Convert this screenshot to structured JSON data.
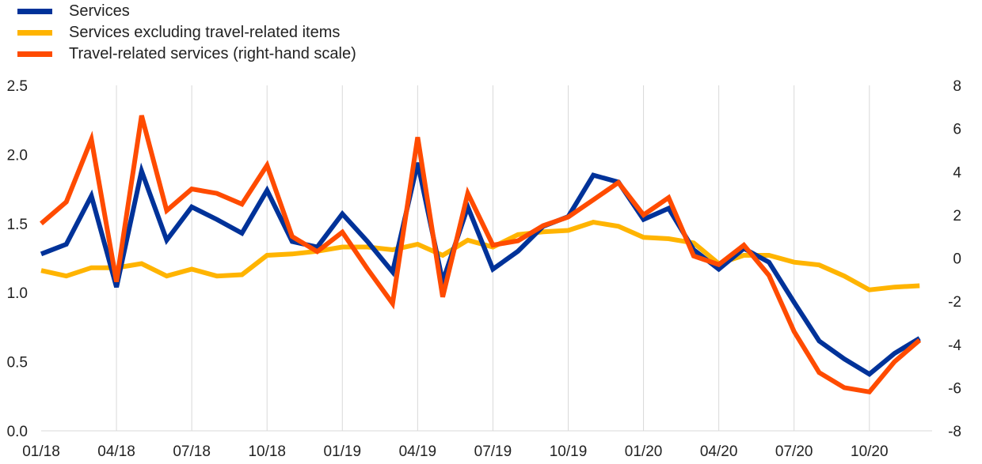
{
  "chart_data": {
    "type": "line",
    "title": "",
    "x": [
      "01/18",
      "02/18",
      "03/18",
      "04/18",
      "05/18",
      "06/18",
      "07/18",
      "08/18",
      "09/18",
      "10/18",
      "11/18",
      "12/18",
      "01/19",
      "02/19",
      "03/19",
      "04/19",
      "05/19",
      "06/19",
      "07/19",
      "08/19",
      "09/19",
      "10/19",
      "11/19",
      "12/19",
      "01/20",
      "02/20",
      "03/20",
      "04/20",
      "05/20",
      "06/20",
      "07/20",
      "08/20",
      "09/20",
      "10/20",
      "11/20",
      "12/20"
    ],
    "x_tick_labels": [
      "01/18",
      "04/18",
      "07/18",
      "10/18",
      "01/19",
      "04/19",
      "07/19",
      "10/19",
      "01/20",
      "04/20",
      "07/20",
      "10/20"
    ],
    "y_left": {
      "label": "",
      "ylim": [
        0.0,
        2.5
      ],
      "ticks": [
        "0.0",
        "0.5",
        "1.0",
        "1.5",
        "2.0",
        "2.5"
      ]
    },
    "y_right": {
      "label": "",
      "ylim": [
        -8,
        8
      ],
      "ticks": [
        "-8",
        "-6",
        "-4",
        "-2",
        "0",
        "2",
        "4",
        "6",
        "8"
      ]
    },
    "grid": "vertical",
    "legend_position": "top-left",
    "series": [
      {
        "name": "Services",
        "axis": "left",
        "color": "#003299",
        "values": [
          1.28,
          1.35,
          1.7,
          1.04,
          1.88,
          1.38,
          1.62,
          1.53,
          1.43,
          1.74,
          1.37,
          1.33,
          1.57,
          1.37,
          1.15,
          1.94,
          1.08,
          1.62,
          1.17,
          1.3,
          1.48,
          1.55,
          1.85,
          1.8,
          1.53,
          1.61,
          1.31,
          1.17,
          1.32,
          1.22,
          0.93,
          0.65,
          0.52,
          0.41,
          0.56,
          0.67
        ]
      },
      {
        "name": "Services excluding travel-related items",
        "axis": "left",
        "color": "#FFB400",
        "values": [
          1.16,
          1.12,
          1.18,
          1.18,
          1.21,
          1.12,
          1.17,
          1.12,
          1.13,
          1.27,
          1.28,
          1.3,
          1.33,
          1.33,
          1.31,
          1.35,
          1.27,
          1.38,
          1.33,
          1.42,
          1.44,
          1.45,
          1.51,
          1.48,
          1.4,
          1.39,
          1.36,
          1.21,
          1.27,
          1.27,
          1.22,
          1.2,
          1.12,
          1.02,
          1.04,
          1.05
        ]
      },
      {
        "name": "Travel-related services (right-hand scale)",
        "axis": "right",
        "color": "#FF4B00",
        "values": [
          1.6,
          2.6,
          5.5,
          -1.1,
          6.6,
          2.2,
          3.2,
          3.0,
          2.5,
          4.3,
          1.0,
          0.3,
          1.2,
          -0.5,
          -2.1,
          5.6,
          -1.8,
          3.0,
          0.6,
          0.8,
          1.5,
          1.9,
          2.7,
          3.5,
          2.0,
          2.8,
          0.1,
          -0.3,
          0.6,
          -0.8,
          -3.4,
          -5.3,
          -6.0,
          -6.2,
          -4.8,
          -3.8
        ]
      }
    ]
  }
}
